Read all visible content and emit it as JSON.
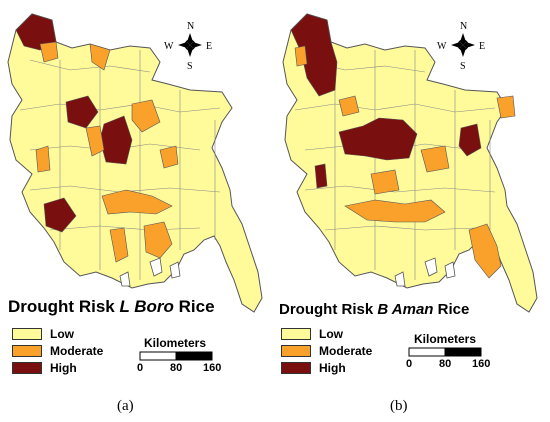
{
  "colors": {
    "low": "#FFFB9B",
    "moderate": "#F9A12B",
    "high": "#7A0F10",
    "border": "#555555"
  },
  "panels": [
    {
      "id": "a",
      "title_prefix": "Drought Risk ",
      "title_italic": "L Boro",
      "title_suffix": " Rice",
      "legend": [
        "Low",
        "Moderate",
        "High"
      ],
      "scale_title": "Kilometers",
      "scale_ticks": [
        "0",
        "80",
        "160"
      ],
      "caption": "(a)",
      "compass": {
        "n": "N",
        "s": "S",
        "e": "E",
        "w": "W"
      }
    },
    {
      "id": "b",
      "title_prefix": "Drought Risk ",
      "title_italic": "B Aman",
      "title_suffix": " Rice",
      "legend": [
        "Low",
        "Moderate",
        "High"
      ],
      "scale_title": "Kilometers",
      "scale_ticks": [
        "0",
        "80",
        "160"
      ],
      "caption": "(b)",
      "compass": {
        "n": "N",
        "s": "S",
        "e": "E",
        "w": "W"
      }
    }
  ]
}
